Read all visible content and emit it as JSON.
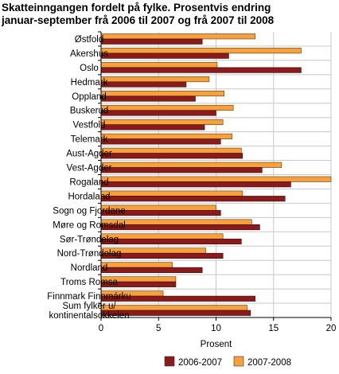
{
  "title_lines": [
    "Skatteinngangen fordelt på fylke. Prosentvis endring",
    "januar-september frå 2006 til 2007 og frå 2007 til 2008"
  ],
  "chart_data": {
    "type": "bar",
    "orientation": "horizontal",
    "categories": [
      [
        "Østfold"
      ],
      [
        "Akershus"
      ],
      [
        "Oslo"
      ],
      [
        "Hedmark"
      ],
      [
        "Oppland"
      ],
      [
        "Buskerud"
      ],
      [
        "Vestfold"
      ],
      [
        "Telemark"
      ],
      [
        "Aust-Agder"
      ],
      [
        "Vest-Agder"
      ],
      [
        "Rogaland"
      ],
      [
        "Hordaland"
      ],
      [
        "Sogn og Fjordane"
      ],
      [
        "Møre og Romsdal"
      ],
      [
        "Sør-Trøndelag"
      ],
      [
        "Nord-Trøndelag"
      ],
      [
        "Nordland"
      ],
      [
        "Troms Romsa"
      ],
      [
        "Finnmark Finnmárku"
      ],
      [
        "Sum fylker u/",
        "kontinentalsokkelen"
      ]
    ],
    "series": [
      {
        "name": "2006-2007",
        "color": "#8b1a1a",
        "values": [
          8.8,
          11.1,
          17.4,
          7.4,
          8.2,
          10.0,
          9.0,
          10.4,
          12.3,
          14.0,
          16.5,
          16.0,
          10.4,
          13.8,
          12.2,
          10.6,
          8.8,
          6.5,
          13.4,
          13.0
        ]
      },
      {
        "name": "2007-2008",
        "color": "#f7a13e",
        "values": [
          13.4,
          17.4,
          10.1,
          9.4,
          10.7,
          11.5,
          10.6,
          11.4,
          12.2,
          15.7,
          20.0,
          12.3,
          10.0,
          13.1,
          10.6,
          9.1,
          6.2,
          6.5,
          5.4,
          12.7
        ]
      }
    ],
    "xlabel": "Prosent",
    "ylabel": "",
    "xlim": [
      0,
      20
    ],
    "xticks": [
      0,
      5,
      10,
      15,
      20
    ],
    "grid": true,
    "legend": "bottom"
  }
}
